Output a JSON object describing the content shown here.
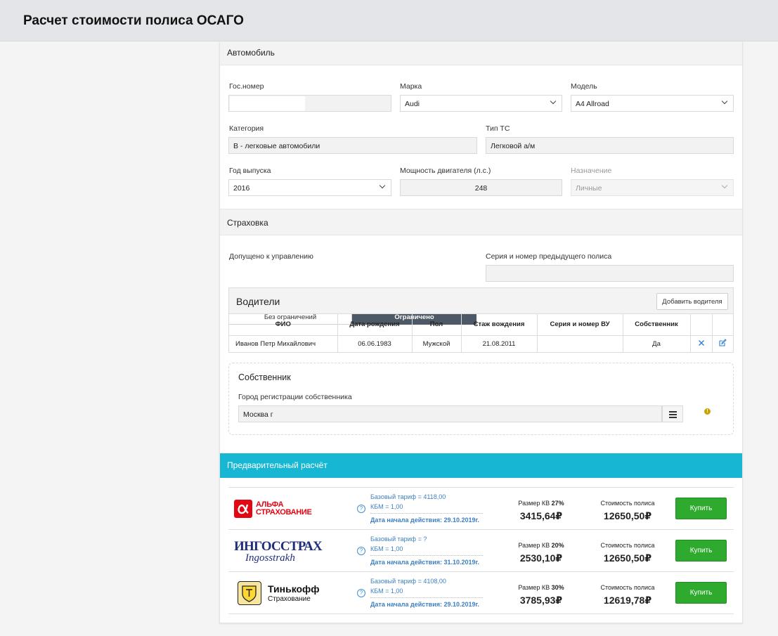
{
  "page": {
    "title": "Расчет стоимости полиса ОСАГО"
  },
  "car": {
    "section_title": "Автомобиль",
    "reg_label": "Гос.номер",
    "reg_value": "",
    "brand_label": "Марка",
    "brand_value": "Audi",
    "model_label": "Модель",
    "model_value": "A4 Allroad",
    "category_label": "Категория",
    "category_value": "B - легковые автомобили",
    "type_label": "Тип ТС",
    "type_value": "Легковой а/м",
    "year_label": "Год выпуска",
    "year_value": "2016",
    "power_label": "Мощность двигателя (л.с.)",
    "power_value": "248",
    "purpose_label": "Назначение",
    "purpose_value": "Личные"
  },
  "insurance": {
    "section_title": "Страховка",
    "admitted_label": "Допущено к управлению",
    "opt_unlimited": "Без ограничений",
    "opt_limited": "Ограничено",
    "selected": "Ограничено",
    "prev_policy_label": "Серия и номер предыдущего полиса",
    "prev_policy_value": ""
  },
  "drivers": {
    "title": "Водители",
    "add_button": "Добавить водителя",
    "columns": [
      "ФИО",
      "Дата рождения",
      "Пол",
      "Стаж вождения",
      "Серия и номер ВУ",
      "Собственник"
    ],
    "rows": [
      {
        "name": "Иванов Петр Михайлович",
        "birth": "06.06.1983",
        "sex": "Мужской",
        "exp": "21.08.2011",
        "license": "",
        "owner": "Да"
      }
    ]
  },
  "owner": {
    "title": "Собственник",
    "city_label": "Город регистрации собственника",
    "city_value": "Москва г"
  },
  "prelim": {
    "title": "Предварительный расчёт",
    "offers": [
      {
        "company": "АЛЬФА СТРАХОВАНИЕ",
        "logo_line1": "АЛЬФА",
        "logo_line2": "СТРАХОВАНИЕ",
        "base": "Базовый тариф = 4118,00",
        "kbm": "КБМ = 1,00",
        "start": "Дата начала действия: 29.10.2019г.",
        "kv_label": "Размер КВ",
        "kv_pct": "27%",
        "kv_value": "3415,64₽",
        "cost_label": "Стоимость полиса",
        "cost_value": "12650,50₽",
        "buy": "Купить"
      },
      {
        "company": "ИНГОССТРАХ",
        "logo_line1": "ИНГОССТРАХ",
        "logo_line2": "Ingosstrakh",
        "base": "Базовый тариф = ?",
        "kbm": "КБМ = 1,00",
        "start": "Дата начала действия: 31.10.2019г.",
        "kv_label": "Размер КВ",
        "kv_pct": "20%",
        "kv_value": "2530,10₽",
        "cost_label": "Стоимость полиса",
        "cost_value": "12650,50₽",
        "buy": "Купить"
      },
      {
        "company": "Тинькофф Страхование",
        "logo_line1": "Тинькофф",
        "logo_line2": "Страхование",
        "base": "Базовый тариф = 4108,00",
        "kbm": "КБМ = 1,00",
        "start": "Дата начала действия: 29.10.2019г.",
        "kv_label": "Размер КВ",
        "kv_pct": "30%",
        "kv_value": "3785,93₽",
        "cost_label": "Стоимость полиса",
        "cost_value": "12619,78₽",
        "buy": "Купить"
      }
    ]
  },
  "colors": {
    "accent": "#17b7d3",
    "buy": "#2eaa2e",
    "selected_segment": "#4d5966",
    "link": "#3d7fc1",
    "alfa": "#e30613",
    "ingos": "#1f2d7a"
  }
}
